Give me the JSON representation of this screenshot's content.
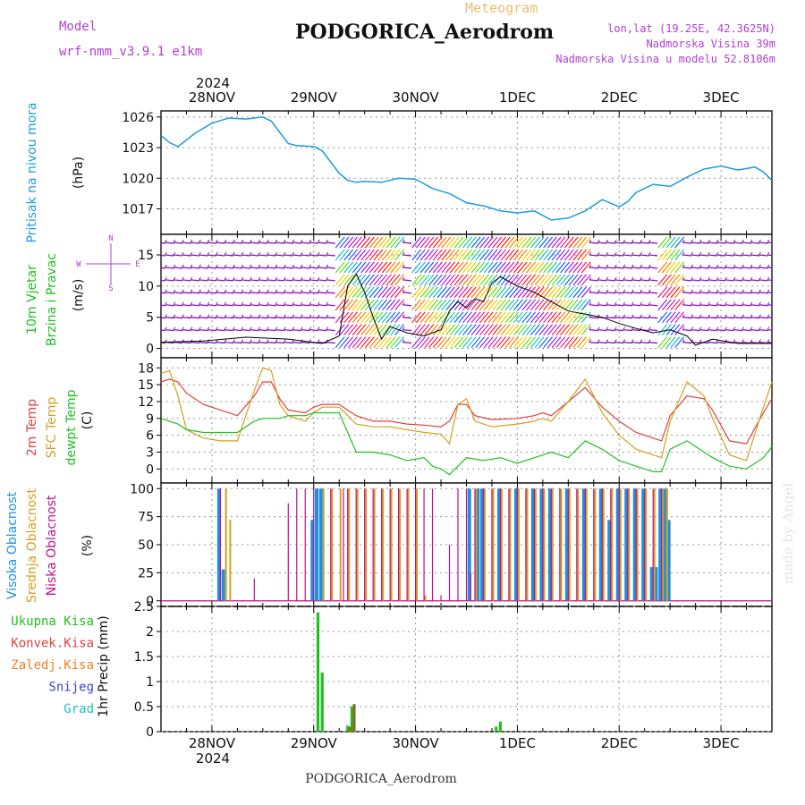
{
  "header": {
    "model_label": "Model",
    "model_name": "wrf-nmm_v3.9.1 e1km",
    "meteogram_label": "Meteogram",
    "station_title": "PODGORICA_Aerodrom",
    "lonlat": "lon,lat (19.25E, 42.3625N)",
    "elevation": "Nadmorska Visina 39m",
    "model_elevation": "Nadmorska Visina u modelu 52.8106m"
  },
  "footer": {
    "station_name": "PODGORICA_Aerodrom",
    "watermark": "made by Angel"
  },
  "time_axis": {
    "year": "2024",
    "day_labels": [
      "28NOV",
      "29NOV",
      "30NOV",
      "1DEC",
      "2DEC",
      "3DEC"
    ]
  },
  "colors": {
    "pressure": "#1e9be0",
    "temp_2m": "#e04040",
    "temp_sfc": "#d4a020",
    "dewpoint": "#20c020",
    "high_cloud": "#1e90e0",
    "mid_cloud": "#d4a020",
    "low_cloud": "#c0108f",
    "precip_total": "#20c020",
    "precip_conv": "#e04040",
    "precip_frozen": "#f08020",
    "snow": "#4040e0",
    "hail": "#20c0c0",
    "wind_purple": "#8a1ab8"
  },
  "chart_data": [
    {
      "type": "line",
      "title": "",
      "ylabel_lines": [
        "Pritisak na nivou mora",
        "(hPa)"
      ],
      "yticks": [
        1017,
        1020,
        1023,
        1026
      ],
      "ylim": [
        1014.5,
        1026.6
      ],
      "xlim": [
        0,
        144
      ],
      "grid": true,
      "series": [
        {
          "name": "Pritisak na nivou mora",
          "x": [
            0,
            2,
            4,
            8,
            12,
            16,
            20,
            24,
            26,
            28,
            30,
            32,
            36,
            38,
            42,
            44,
            46,
            48,
            52,
            56,
            60,
            64,
            68,
            72,
            76,
            80,
            84,
            88,
            92,
            96,
            100,
            104,
            108,
            110,
            112,
            116,
            120,
            124,
            128,
            132,
            136,
            140,
            142,
            144
          ],
          "y": [
            1024.2,
            1023.5,
            1023.1,
            1024.4,
            1025.4,
            1025.9,
            1025.8,
            1026.0,
            1025.6,
            1024.5,
            1023.4,
            1023.2,
            1023.1,
            1022.7,
            1020.5,
            1019.8,
            1019.6,
            1019.7,
            1019.6,
            1020.0,
            1019.9,
            1019.0,
            1018.5,
            1017.6,
            1017.3,
            1016.8,
            1016.6,
            1016.8,
            1015.9,
            1016.1,
            1016.8,
            1017.9,
            1017.2,
            1017.7,
            1018.6,
            1019.4,
            1019.2,
            1020.1,
            1020.9,
            1021.2,
            1020.8,
            1021.1,
            1020.6,
            1019.8
          ]
        }
      ]
    },
    {
      "type": "line",
      "title": "",
      "ylabel_lines": [
        "10m Vjetar",
        "Brzina i Pravac",
        "(m/s)"
      ],
      "compass": [
        "N",
        "S",
        "W",
        "E"
      ],
      "yticks": [
        0,
        5,
        10,
        15
      ],
      "ylim": [
        -1.5,
        18.3
      ],
      "xlim": [
        0,
        144
      ],
      "grid": true,
      "series": [
        {
          "name": "Brzina",
          "x": [
            0,
            10,
            20,
            30,
            38,
            42,
            44,
            46,
            48,
            50,
            52,
            54,
            58,
            62,
            66,
            68,
            70,
            72,
            74,
            76,
            78,
            80,
            84,
            88,
            92,
            96,
            100,
            104,
            108,
            112,
            116,
            120,
            124,
            126,
            130,
            136,
            144
          ],
          "y": [
            1.0,
            1.2,
            1.8,
            1.5,
            0.8,
            2.0,
            10.0,
            12.0,
            9.0,
            5.0,
            1.5,
            3.5,
            2.5,
            2.0,
            3.0,
            6.0,
            7.5,
            6.5,
            8.0,
            7.5,
            10.5,
            11.5,
            10.0,
            9.0,
            7.5,
            6.0,
            5.5,
            5.0,
            4.0,
            3.2,
            2.5,
            3.0,
            2.0,
            0.5,
            1.5,
            0.8,
            0.8
          ]
        }
      ]
    },
    {
      "type": "line",
      "title": "",
      "ylabel_lines": [
        "2m Temp",
        "SFC Temp",
        "dewpt Temp",
        "(C)"
      ],
      "yticks": [
        0,
        3,
        6,
        9,
        12,
        15,
        18
      ],
      "ylim": [
        -2.5,
        19.8
      ],
      "xlim": [
        0,
        144
      ],
      "grid": true,
      "series": [
        {
          "name": "2m Temp",
          "x": [
            0,
            2,
            4,
            6,
            10,
            14,
            18,
            22,
            24,
            26,
            28,
            30,
            34,
            36,
            38,
            42,
            46,
            50,
            54,
            58,
            62,
            66,
            68,
            70,
            72,
            74,
            78,
            84,
            88,
            90,
            92,
            96,
            100,
            104,
            108,
            112,
            114,
            116,
            118,
            120,
            124,
            128,
            130,
            134,
            138,
            142,
            144
          ],
          "y": [
            15.5,
            16.0,
            15.5,
            13.5,
            11.5,
            10.5,
            9.5,
            13.0,
            15.5,
            15.5,
            12.5,
            10.5,
            10.0,
            11.0,
            11.5,
            11.5,
            9.5,
            8.5,
            8.5,
            8.0,
            7.8,
            7.5,
            8.5,
            11.5,
            11.5,
            9.5,
            8.8,
            9.0,
            9.5,
            10.0,
            9.5,
            12.0,
            14.5,
            11.0,
            8.5,
            6.5,
            6.0,
            5.5,
            5.0,
            9.5,
            13.0,
            12.5,
            10.5,
            5.0,
            4.5,
            10.0,
            12.5
          ]
        },
        {
          "name": "SFC Temp",
          "x": [
            0,
            2,
            4,
            6,
            10,
            14,
            18,
            22,
            24,
            26,
            28,
            30,
            34,
            36,
            38,
            42,
            46,
            50,
            54,
            58,
            62,
            66,
            68,
            70,
            72,
            74,
            78,
            84,
            88,
            90,
            92,
            96,
            100,
            104,
            108,
            112,
            114,
            116,
            118,
            120,
            124,
            128,
            130,
            134,
            138,
            142,
            144
          ],
          "y": [
            17.0,
            17.5,
            13.0,
            7.0,
            5.5,
            5.0,
            5.0,
            14.0,
            18.0,
            17.5,
            11.5,
            9.5,
            8.5,
            10.0,
            11.0,
            11.0,
            8.0,
            7.5,
            7.5,
            7.0,
            6.5,
            6.2,
            4.5,
            11.5,
            12.5,
            8.5,
            7.5,
            8.0,
            8.5,
            9.0,
            8.5,
            12.0,
            16.0,
            10.0,
            6.0,
            3.5,
            3.0,
            2.5,
            2.0,
            8.5,
            15.5,
            13.0,
            9.0,
            2.5,
            1.5,
            11.0,
            15.5
          ]
        },
        {
          "name": "dewpt Temp",
          "x": [
            0,
            2,
            4,
            6,
            10,
            14,
            18,
            22,
            24,
            26,
            28,
            30,
            34,
            36,
            38,
            42,
            44,
            46,
            50,
            54,
            58,
            62,
            64,
            66,
            68,
            72,
            76,
            80,
            84,
            88,
            92,
            96,
            100,
            104,
            108,
            112,
            114,
            116,
            118,
            120,
            124,
            128,
            130,
            134,
            138,
            142,
            144
          ],
          "y": [
            9.0,
            8.5,
            8.0,
            7.0,
            6.5,
            6.5,
            6.5,
            8.5,
            9.0,
            9.0,
            9.0,
            9.5,
            9.5,
            10.0,
            10.0,
            10.0,
            6.5,
            3.0,
            3.0,
            2.5,
            1.5,
            2.0,
            0.5,
            0.0,
            -1.0,
            2.0,
            1.5,
            2.0,
            1.0,
            2.0,
            3.0,
            2.0,
            5.0,
            3.5,
            1.5,
            0.5,
            0.0,
            -0.5,
            -0.5,
            3.5,
            5.0,
            3.0,
            2.0,
            0.5,
            0.0,
            2.0,
            4.0
          ]
        }
      ]
    },
    {
      "type": "bar",
      "title": "",
      "ylabel_lines": [
        "Visoka Oblacnost",
        "Srednja Oblacnost",
        "Niska Oblacnost",
        "(%)"
      ],
      "yticks": [
        0,
        25,
        50,
        75,
        100
      ],
      "ylim": [
        -5,
        105
      ],
      "xlim": [
        0,
        144
      ],
      "grid": true,
      "series": [
        {
          "name": "Visoka Oblacnost",
          "x": [
            14,
            15,
            36,
            37,
            38,
            73,
            75,
            76,
            80,
            84,
            88,
            90,
            92,
            96,
            100,
            104,
            106,
            108,
            110,
            112,
            114,
            116,
            117,
            118,
            119,
            120
          ],
          "y": [
            100,
            28,
            72,
            100,
            100,
            100,
            100,
            100,
            100,
            100,
            100,
            100,
            100,
            100,
            100,
            100,
            72,
            100,
            100,
            100,
            100,
            30,
            30,
            100,
            100,
            72
          ]
        },
        {
          "name": "Srednja Oblacnost",
          "x": [
            15,
            16,
            38,
            40,
            42,
            44,
            46,
            48,
            50,
            52,
            54,
            56,
            58,
            60,
            62,
            74,
            76,
            78,
            80,
            82,
            84,
            86,
            88,
            90,
            92,
            94,
            96,
            98,
            100,
            102,
            104,
            106,
            108,
            110,
            112,
            114,
            116,
            118,
            119
          ],
          "y": [
            100,
            72,
            100,
            100,
            100,
            100,
            100,
            100,
            100,
            100,
            100,
            100,
            100,
            100,
            5,
            100,
            100,
            100,
            100,
            100,
            100,
            100,
            100,
            100,
            100,
            100,
            100,
            100,
            100,
            100,
            100,
            100,
            100,
            100,
            100,
            100,
            100,
            100,
            100
          ]
        },
        {
          "name": "Niska Oblacnost",
          "x": [
            14,
            22,
            30,
            32,
            34,
            36,
            40,
            43,
            44,
            46,
            48,
            50,
            52,
            54,
            56,
            58,
            60,
            62,
            64,
            66,
            68,
            70,
            72,
            73,
            74,
            76,
            78,
            80,
            82,
            84,
            86,
            88,
            90,
            92,
            94,
            96,
            98,
            100,
            102,
            104,
            106,
            108,
            110,
            112,
            114,
            116,
            118
          ],
          "y": [
            100,
            20,
            87,
            100,
            100,
            100,
            100,
            100,
            100,
            100,
            100,
            100,
            100,
            100,
            100,
            100,
            100,
            100,
            100,
            5,
            50,
            100,
            100,
            25,
            100,
            100,
            100,
            100,
            100,
            100,
            100,
            100,
            100,
            100,
            100,
            100,
            100,
            100,
            100,
            100,
            100,
            100,
            100,
            100,
            100,
            100,
            100
          ]
        }
      ]
    },
    {
      "type": "bar",
      "title": "",
      "ylabel_lines": [
        "1hr Precip (mm)"
      ],
      "legend": [
        "Ukupna Kisa",
        "Konvek.Kisa",
        "Zaledj.Kisa",
        "Snijeg",
        "Grad"
      ],
      "yticks": [
        0,
        0.5,
        1,
        1.5,
        2,
        2.5
      ],
      "ylim": [
        0,
        2.5
      ],
      "xlim": [
        0,
        144
      ],
      "grid": true,
      "series": [
        {
          "name": "Ukupna Kisa",
          "x": [
            37,
            38,
            44,
            45,
            79,
            80
          ],
          "y": [
            2.38,
            1.18,
            0.12,
            0.5,
            0.1,
            0.2
          ]
        },
        {
          "name": "Zaledj.Kisa",
          "x": [
            44,
            45
          ],
          "y": [
            0.1,
            0.55
          ]
        }
      ]
    }
  ]
}
